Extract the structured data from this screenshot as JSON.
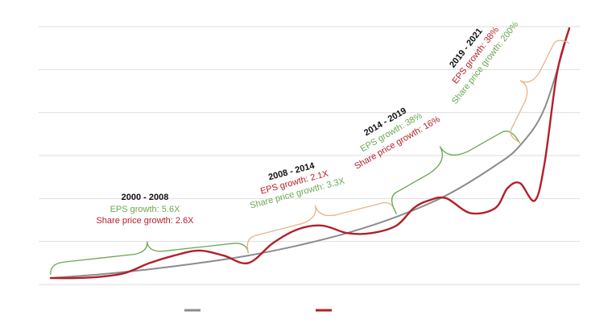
{
  "colors": {
    "grid": "#dedede",
    "trend_line": "#8c8c8c",
    "price_line": "#b3202a",
    "eps_text": "#6aa84f",
    "price_text": "#b3202a",
    "brace_green": "#6aa84f",
    "brace_orange": "#e8b48a"
  },
  "annotations": [
    {
      "period": "2000 - 2008",
      "eps": "EPS growth: 5.6X",
      "price": "Share price growth: 2.6X"
    },
    {
      "period": "2008 - 2014",
      "eps": "EPS growth: 2.1X",
      "price": "Share price growth: 3.3X"
    },
    {
      "period": "2014 - 2019",
      "eps": "EPS growth: 38%",
      "price": "Share price growth: 16%"
    },
    {
      "period": "2019 - 2021",
      "eps": "EPS growth: 38%",
      "price": "Share price growth: 200%"
    }
  ],
  "chart_data": {
    "type": "line",
    "title": "",
    "xlabel": "",
    "ylabel": "",
    "x_range": [
      2000,
      2021
    ],
    "y_range": [
      0,
      100
    ],
    "grid": true,
    "grid_lines": 7,
    "axis_labels_shown": false,
    "legend": {
      "placement": "bottom",
      "entries": [
        {
          "color": "#8c8c8c",
          "label": ""
        },
        {
          "color": "#b3202a",
          "label": ""
        }
      ]
    },
    "series": [
      {
        "role": "trend",
        "color": "#8c8c8c",
        "x": [
          2000,
          2002,
          2004,
          2006,
          2008,
          2010,
          2012,
          2014,
          2016,
          2018,
          2019,
          2020,
          2021
        ],
        "values": [
          0,
          1.5,
          3.5,
          6,
          9,
          13,
          18,
          24.5,
          33,
          45,
          53,
          68,
          100
        ]
      },
      {
        "role": "share-price",
        "color": "#b3202a",
        "x": [
          2000,
          2001,
          2002,
          2003,
          2004,
          2005,
          2006,
          2007,
          2008,
          2009,
          2010,
          2011,
          2012,
          2013,
          2014,
          2014.7,
          2015.3,
          2016,
          2017,
          2018,
          2018.5,
          2019,
          2019.6,
          2020,
          2020.5,
          2021
        ],
        "values": [
          0,
          0,
          0.5,
          2,
          6,
          9,
          11,
          9,
          6,
          14,
          19.5,
          21,
          18,
          18,
          21,
          28,
          31,
          32,
          26,
          28,
          36,
          38,
          31,
          46,
          82,
          100
        ]
      }
    ]
  }
}
